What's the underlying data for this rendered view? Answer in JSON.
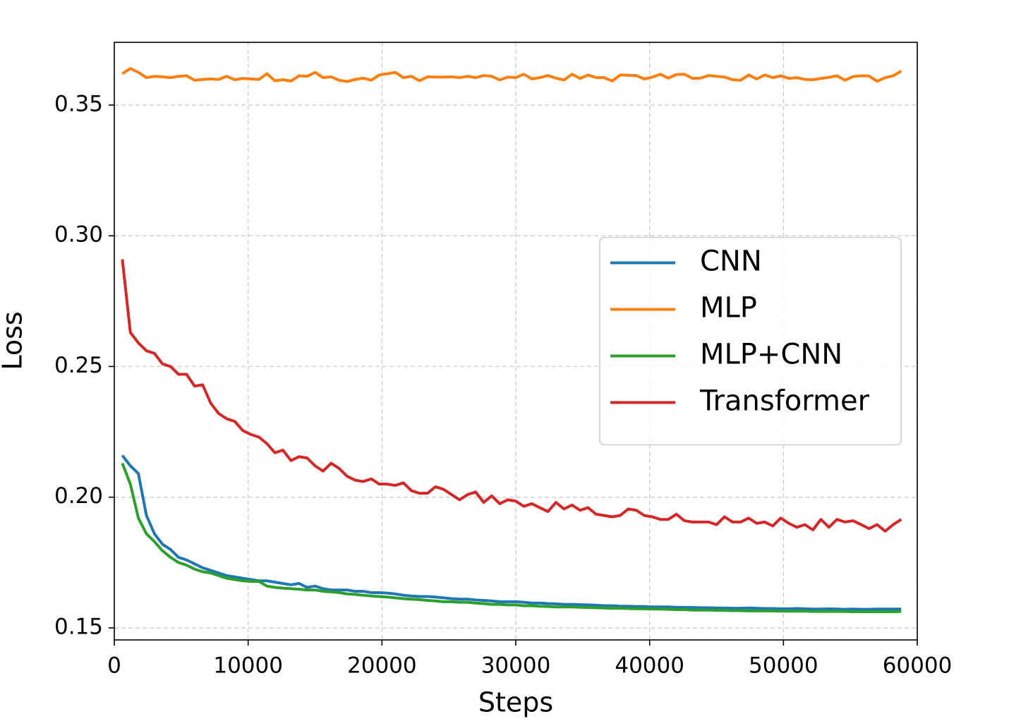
{
  "chart_data": {
    "type": "line",
    "xlabel": "Steps",
    "ylabel": "Loss",
    "xlim": [
      0,
      60000
    ],
    "ylim": [
      0.1454,
      0.374
    ],
    "xticks": [
      0,
      10000,
      20000,
      30000,
      40000,
      50000,
      60000
    ],
    "yticks": [
      0.15,
      {
        "value": 0.2,
        "label": "0.20"
      },
      0.25,
      {
        "value": 0.3,
        "label": "0.30"
      },
      0.35
    ],
    "grid": true,
    "legend": "center right",
    "x": [
      600,
      1200,
      1800,
      2400,
      3000,
      3600,
      4200,
      4800,
      5400,
      6000,
      6600,
      7200,
      7800,
      8400,
      9000,
      9600,
      10200,
      10800,
      11400,
      12000,
      12600,
      13200,
      13800,
      14400,
      15000,
      15600,
      16200,
      16800,
      17400,
      18000,
      18600,
      19200,
      19800,
      20400,
      21000,
      21600,
      22200,
      22800,
      23400,
      24000,
      24600,
      25200,
      25800,
      26400,
      27000,
      27600,
      28200,
      28800,
      29400,
      30000,
      30600,
      31200,
      31800,
      32400,
      33000,
      33600,
      34200,
      34800,
      35400,
      36000,
      36600,
      37200,
      37800,
      38400,
      39000,
      39600,
      40200,
      40800,
      41400,
      42000,
      42600,
      43200,
      43800,
      44400,
      45000,
      45600,
      46200,
      46800,
      47400,
      48000,
      48600,
      49200,
      49800,
      50400,
      51000,
      51600,
      52200,
      52800,
      53400,
      54000,
      54600,
      55200,
      55800,
      56400,
      57000,
      57600,
      58200,
      58800
    ],
    "series": [
      {
        "name": "CNN",
        "color": "#1f77b4",
        "values": [
          0.216,
          0.212,
          0.209,
          0.193,
          0.186,
          0.182,
          0.18,
          0.177,
          0.176,
          0.1745,
          0.173,
          0.172,
          0.171,
          0.17,
          0.1695,
          0.169,
          0.1685,
          0.168,
          0.168,
          0.1675,
          0.167,
          0.1665,
          0.167,
          0.1655,
          0.166,
          0.165,
          0.1645,
          0.1645,
          0.1645,
          0.164,
          0.164,
          0.1635,
          0.1635,
          0.1633,
          0.163,
          0.1625,
          0.1622,
          0.162,
          0.162,
          0.1618,
          0.1615,
          0.1612,
          0.161,
          0.161,
          0.1607,
          0.1605,
          0.1603,
          0.16,
          0.16,
          0.16,
          0.1598,
          0.1595,
          0.1595,
          0.1593,
          0.1592,
          0.159,
          0.159,
          0.1589,
          0.1588,
          0.1587,
          0.1585,
          0.1585,
          0.1583,
          0.1583,
          0.1582,
          0.1582,
          0.158,
          0.158,
          0.158,
          0.1579,
          0.1578,
          0.1578,
          0.1577,
          0.1577,
          0.1576,
          0.1576,
          0.1575,
          0.1575,
          0.1576,
          0.1575,
          0.1574,
          0.1574,
          0.1573,
          0.1573,
          0.1574,
          0.1573,
          0.1572,
          0.1572,
          0.1573,
          0.1572,
          0.1571,
          0.1572,
          0.1571,
          0.1571,
          0.1572,
          0.1572,
          0.1572,
          0.1572
        ]
      },
      {
        "name": "MLP",
        "color": "#ff7f0e",
        "values": [
          0.362,
          0.364,
          0.3625,
          0.3605,
          0.361,
          0.3608,
          0.3605,
          0.361,
          0.3612,
          0.3595,
          0.3598,
          0.36,
          0.3598,
          0.361,
          0.3597,
          0.3602,
          0.36,
          0.3598,
          0.362,
          0.3593,
          0.3597,
          0.3592,
          0.3612,
          0.361,
          0.3625,
          0.3605,
          0.3608,
          0.3595,
          0.359,
          0.3598,
          0.3603,
          0.3595,
          0.3615,
          0.362,
          0.3625,
          0.3605,
          0.361,
          0.3593,
          0.3608,
          0.3607,
          0.3607,
          0.3608,
          0.3605,
          0.361,
          0.3605,
          0.3613,
          0.361,
          0.3596,
          0.3607,
          0.3605,
          0.3618,
          0.36,
          0.3605,
          0.3613,
          0.3603,
          0.3596,
          0.3618,
          0.3602,
          0.3615,
          0.3605,
          0.3605,
          0.3592,
          0.3615,
          0.3614,
          0.3613,
          0.36,
          0.3607,
          0.3618,
          0.3603,
          0.3617,
          0.3618,
          0.3602,
          0.3603,
          0.3613,
          0.361,
          0.3607,
          0.3597,
          0.3595,
          0.3615,
          0.36,
          0.3615,
          0.3605,
          0.3612,
          0.3602,
          0.3605,
          0.3598,
          0.3597,
          0.3602,
          0.3606,
          0.3612,
          0.3595,
          0.3609,
          0.3612,
          0.3611,
          0.3591,
          0.3605,
          0.3612,
          0.363
        ]
      },
      {
        "name": "MLP+CNN",
        "color": "#2ca02c",
        "values": [
          0.213,
          0.205,
          0.192,
          0.186,
          0.183,
          0.1795,
          0.177,
          0.175,
          0.174,
          0.1725,
          0.1715,
          0.171,
          0.17,
          0.169,
          0.1685,
          0.168,
          0.1678,
          0.1678,
          0.166,
          0.1655,
          0.1652,
          0.165,
          0.1648,
          0.1645,
          0.1645,
          0.164,
          0.1638,
          0.1635,
          0.163,
          0.1628,
          0.1625,
          0.1622,
          0.162,
          0.1618,
          0.1615,
          0.1612,
          0.161,
          0.1608,
          0.1605,
          0.1603,
          0.16,
          0.16,
          0.1598,
          0.1598,
          0.1595,
          0.1593,
          0.159,
          0.159,
          0.1588,
          0.1588,
          0.1585,
          0.1585,
          0.1583,
          0.1582,
          0.158,
          0.158,
          0.158,
          0.1579,
          0.1578,
          0.1577,
          0.1576,
          0.1575,
          0.1575,
          0.1574,
          0.1573,
          0.1573,
          0.1572,
          0.1572,
          0.1571,
          0.157,
          0.157,
          0.1568,
          0.1568,
          0.1568,
          0.1567,
          0.1567,
          0.1566,
          0.1566,
          0.1565,
          0.1565,
          0.1565,
          0.1565,
          0.1564,
          0.1564,
          0.1564,
          0.1564,
          0.1563,
          0.1563,
          0.1563,
          0.1563,
          0.1563,
          0.1562,
          0.1562,
          0.1562,
          0.1562,
          0.1562,
          0.1562,
          0.1563
        ]
      },
      {
        "name": "Transformer",
        "color": "#d62728",
        "values": [
          0.291,
          0.263,
          0.259,
          0.256,
          0.255,
          0.251,
          0.25,
          0.247,
          0.247,
          0.2425,
          0.243,
          0.236,
          0.232,
          0.23,
          0.229,
          0.2255,
          0.224,
          0.223,
          0.2205,
          0.217,
          0.218,
          0.214,
          0.2155,
          0.215,
          0.212,
          0.21,
          0.213,
          0.211,
          0.208,
          0.2065,
          0.206,
          0.207,
          0.205,
          0.205,
          0.2045,
          0.2055,
          0.2025,
          0.2015,
          0.2015,
          0.204,
          0.203,
          0.201,
          0.199,
          0.201,
          0.202,
          0.198,
          0.2005,
          0.1975,
          0.199,
          0.1985,
          0.1965,
          0.1975,
          0.196,
          0.1945,
          0.198,
          0.1955,
          0.197,
          0.195,
          0.196,
          0.1935,
          0.193,
          0.1925,
          0.193,
          0.1955,
          0.195,
          0.193,
          0.1925,
          0.1915,
          0.1915,
          0.1935,
          0.191,
          0.1905,
          0.1905,
          0.1905,
          0.1895,
          0.1925,
          0.1905,
          0.1905,
          0.192,
          0.19,
          0.1905,
          0.189,
          0.192,
          0.19,
          0.1885,
          0.1895,
          0.1875,
          0.1915,
          0.1885,
          0.1915,
          0.1905,
          0.191,
          0.1895,
          0.188,
          0.1895,
          0.187,
          0.1895,
          0.1915
        ]
      }
    ]
  }
}
